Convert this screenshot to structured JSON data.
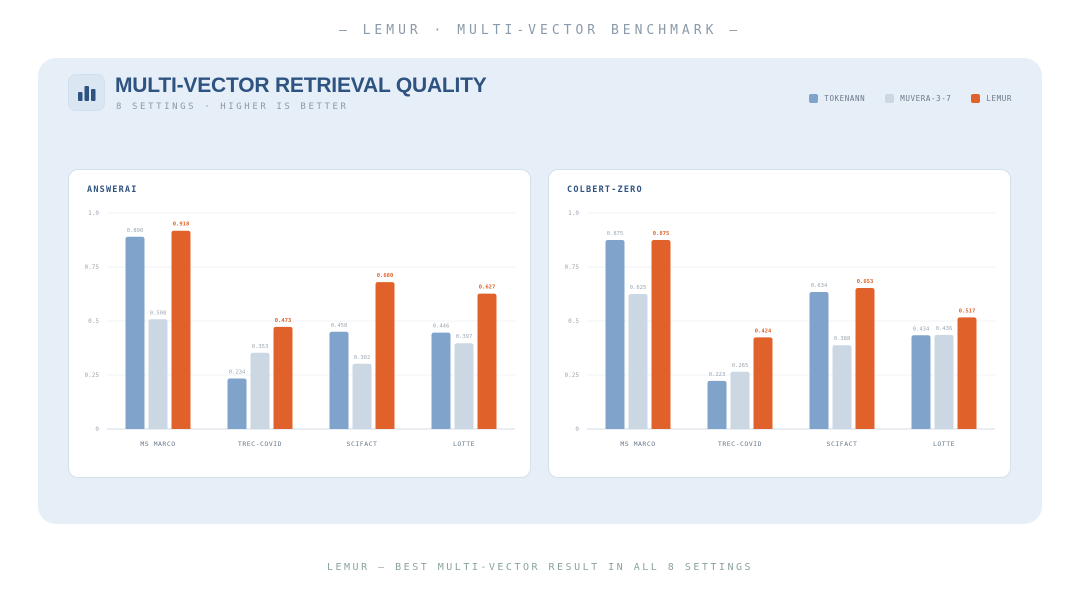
{
  "header": {
    "caption": "— LEMUR · MULTI-VECTOR BENCHMARK —",
    "title": "MULTI-VECTOR RETRIEVAL QUALITY",
    "subtitle": "8 SETTINGS · HIGHER IS BETTER",
    "logo_icon": "bar-chart-icon"
  },
  "legend": [
    {
      "label": "TOKENANN",
      "color": "#7fa3cb"
    },
    {
      "label": "MUVERA-3-7",
      "color": "#cbd7e3"
    },
    {
      "label": "LEMUR",
      "color": "#e0622a"
    }
  ],
  "footer": {
    "caption": "LEMUR — BEST MULTI-VECTOR RESULT IN ALL 8 SETTINGS"
  },
  "chart_data": [
    {
      "type": "bar",
      "title": "ANSWERAI",
      "categories": [
        "MS MARCO",
        "TREC-COVID",
        "SCIFACT",
        "LOTTE"
      ],
      "yticks": [
        "0",
        "0.25",
        "0.5",
        "0.75",
        "1.0"
      ],
      "ylim": [
        0,
        1
      ],
      "grid": true,
      "series": [
        {
          "name": "TOKENANN",
          "values": [
            0.89,
            0.234,
            0.45,
            0.446
          ],
          "labels": [
            "0.890",
            "0.234",
            "0.450",
            "0.446"
          ]
        },
        {
          "name": "MUVERA-3-7",
          "values": [
            0.508,
            0.353,
            0.302,
            0.397
          ],
          "labels": [
            "0.508",
            "0.353",
            "0.302",
            "0.397"
          ]
        },
        {
          "name": "LEMUR",
          "values": [
            0.918,
            0.473,
            0.68,
            0.627
          ],
          "labels": [
            "0.918",
            "0.473",
            "0.680",
            "0.627"
          ]
        }
      ]
    },
    {
      "type": "bar",
      "title": "COLBERT-ZERO",
      "categories": [
        "MS MARCO",
        "TREC-COVID",
        "SCIFACT",
        "LOTTE"
      ],
      "yticks": [
        "0",
        "0.25",
        "0.5",
        "0.75",
        "1.0"
      ],
      "ylim": [
        0,
        1
      ],
      "grid": true,
      "series": [
        {
          "name": "TOKENANN",
          "values": [
            0.875,
            0.223,
            0.634,
            0.434
          ],
          "labels": [
            "0.875",
            "0.223",
            "0.634",
            "0.434"
          ]
        },
        {
          "name": "MUVERA-3-7",
          "values": [
            0.625,
            0.265,
            0.388,
            0.436
          ],
          "labels": [
            "0.625",
            "0.265",
            "0.388",
            "0.436"
          ]
        },
        {
          "name": "LEMUR",
          "values": [
            0.875,
            0.424,
            0.653,
            0.517
          ],
          "labels": [
            "0.875",
            "0.424",
            "0.653",
            "0.517"
          ]
        }
      ]
    }
  ]
}
